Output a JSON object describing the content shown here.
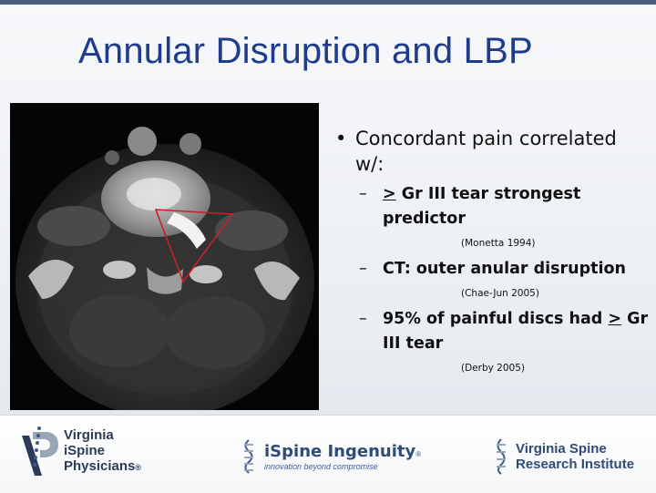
{
  "slide": {
    "title": "Annular Disruption and LBP",
    "bullet": "•",
    "main_point": "Concordant pain correlated w/:",
    "dash": "–",
    "items": [
      {
        "prefix": ">",
        "text": " Gr III tear strongest predictor",
        "citation": "(Monetta 1994)"
      },
      {
        "text": "CT: outer anular disruption",
        "citation": "(Chae-Jun 2005)"
      },
      {
        "text": "95% of painful discs had ",
        "suffix": ">",
        "text2": " Gr III tear",
        "citation": "(Derby 2005)"
      }
    ]
  },
  "footer": {
    "vip": {
      "line1": "Virginia",
      "line2": "iSpine",
      "line3": "Physicians",
      "mark": "®"
    },
    "ispine": {
      "name": "iSpine Ingenuity",
      "mark": "®",
      "tagline": "innovation beyond compromise"
    },
    "vsri": {
      "line1": "Virginia Spine",
      "line2": "Research Institute"
    }
  },
  "colors": {
    "title": "#1f3c8c",
    "annotation": "#c8202a",
    "footer_text": "#2f4b78"
  },
  "icons": [
    "ct-scan-image",
    "spine-logo-icon"
  ]
}
